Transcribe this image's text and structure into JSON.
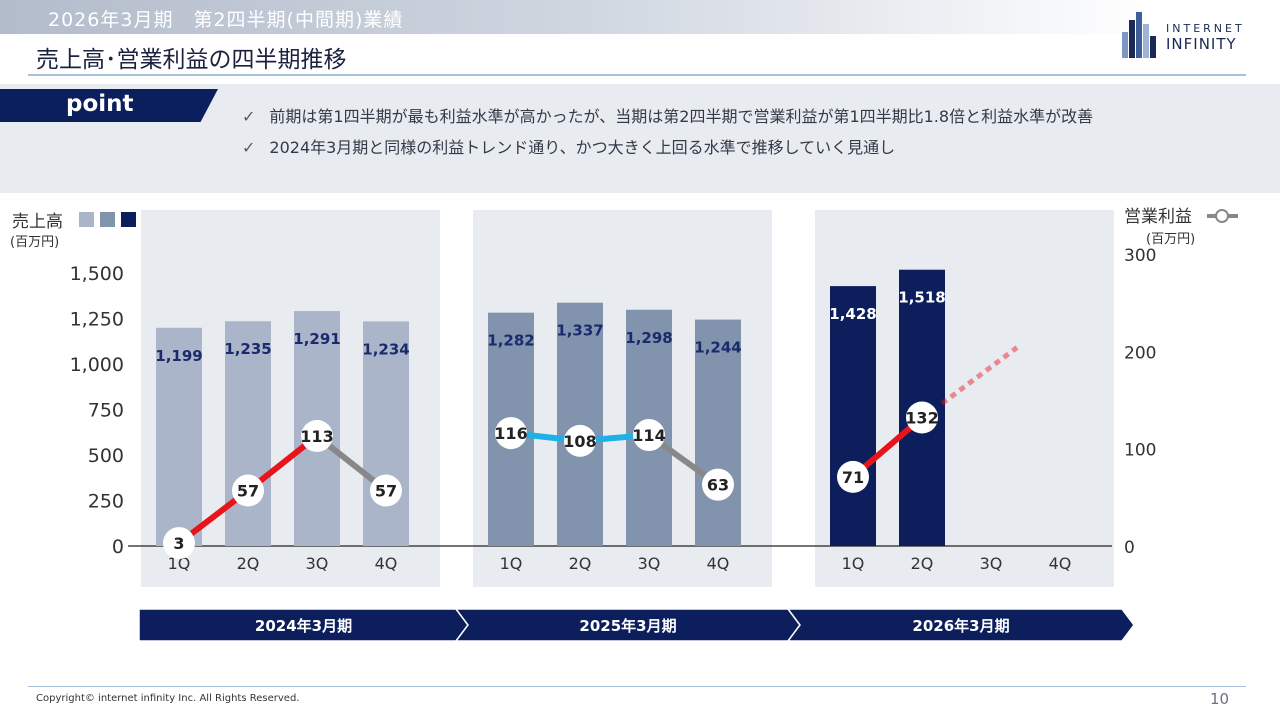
{
  "header": {
    "section_title": "2026年3月期　第2四半期(中間期)業績",
    "page_title": "売上高･営業利益の四半期推移",
    "logo_line1": "INTERNET",
    "logo_line2": "INFINITY"
  },
  "point": {
    "label": "point",
    "bullets": [
      "前期は第1四半期が最も利益水準が高かったが、当期は第2四半期で営業利益が第1四半期比1.8倍と利益水準が改善",
      "2024年3月期と同様の利益トレンド通り、かつ大きく上回る水準で推移していく見通し"
    ],
    "check_icon": "checkmark-icon"
  },
  "chart_data": {
    "type": "bar",
    "left_axis_label": "売上高",
    "left_axis_unit": "(百万円)",
    "right_axis_label": "営業利益",
    "right_axis_unit": "(百万円)",
    "left_ylim": [
      0,
      1500
    ],
    "left_ticks": [
      "0",
      "250",
      "500",
      "750",
      "1,000",
      "1,250",
      "1,500"
    ],
    "right_ylim": [
      0,
      300
    ],
    "right_ticks": [
      "0",
      "100",
      "200",
      "300"
    ],
    "bar_colors": [
      "#aab5c9",
      "#8293ad",
      "#0c1f5c"
    ],
    "line_colors": [
      "#e8141c",
      "#888888",
      "#1fb0e6"
    ],
    "periods": [
      {
        "name": "2024年3月期",
        "quarters": [
          "1Q",
          "2Q",
          "3Q",
          "4Q"
        ],
        "sales": [
          1199,
          1235,
          1291,
          1234
        ],
        "sales_labels": [
          "1,199",
          "1,235",
          "1,291",
          "1,234"
        ],
        "operating_profit": [
          3,
          57,
          113,
          57
        ]
      },
      {
        "name": "2025年3月期",
        "quarters": [
          "1Q",
          "2Q",
          "3Q",
          "4Q"
        ],
        "sales": [
          1282,
          1337,
          1298,
          1244
        ],
        "sales_labels": [
          "1,282",
          "1,337",
          "1,298",
          "1,244"
        ],
        "operating_profit": [
          116,
          108,
          114,
          63
        ]
      },
      {
        "name": "2026年3月期",
        "quarters": [
          "1Q",
          "2Q",
          "3Q",
          "4Q"
        ],
        "sales": [
          1428,
          1518,
          null,
          null
        ],
        "sales_labels": [
          "1,428",
          "1,518",
          "",
          ""
        ],
        "operating_profit": [
          71,
          132,
          null,
          null
        ]
      }
    ]
  },
  "footer": {
    "copyright": "Copyright© internet infinity Inc. All Rights Reserved.",
    "page_number": "10"
  }
}
